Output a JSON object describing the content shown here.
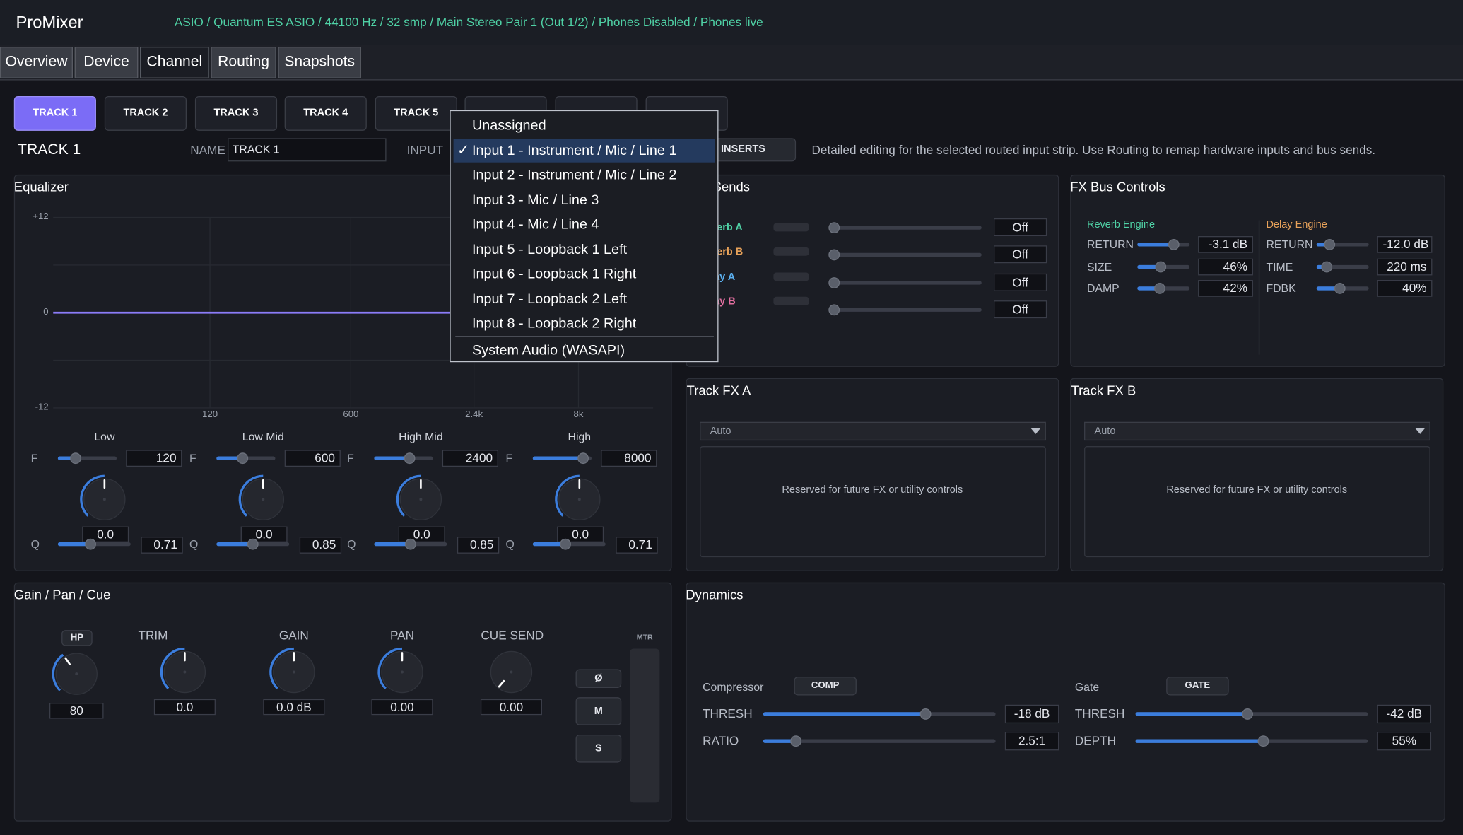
{
  "header": {
    "app_title": "ProMixer",
    "status": "ASIO / Quantum ES ASIO / 44100 Hz / 32 smp / Main Stereo Pair 1 (Out 1/2) / Phones Disabled / Phones live"
  },
  "tabs": [
    "Overview",
    "Device",
    "Channel",
    "Routing",
    "Snapshots"
  ],
  "tracks": [
    "TRACK 1",
    "TRACK 2",
    "TRACK 3",
    "TRACK 4",
    "TRACK 5"
  ],
  "channel": {
    "title": "TRACK 1",
    "name_label": "NAME",
    "name_value": "TRACK 1",
    "input_label": "INPUT",
    "inserts": "INSERTS",
    "description": "Detailed editing for the selected routed input strip. Use Routing to remap hardware inputs and bus sends."
  },
  "input_menu": {
    "check": "✓",
    "options": [
      "Unassigned",
      "Input 1 - Instrument / Mic / Line 1",
      "Input 2 - Instrument / Mic / Line 2",
      "Input 3 - Mic / Line 3",
      "Input 4 - Mic / Line 4",
      "Input 5 - Loopback 1 Left",
      "Input 6 - Loopback 1 Right",
      "Input 7 - Loopback 2 Left",
      "Input 8 - Loopback 2 Right",
      "System Audio (WASAPI)"
    ]
  },
  "equalizer": {
    "title": "Equalizer",
    "yticks": [
      "+12",
      "0",
      "-12"
    ],
    "xticks": [
      "120",
      "600",
      "2.4k",
      "8k"
    ],
    "f_label": "F",
    "q_label": "Q",
    "bands": [
      {
        "name": "Low",
        "freq": 120,
        "gain": "0.0",
        "q": 0.71
      },
      {
        "name": "Low Mid",
        "freq": 600,
        "gain": "0.0",
        "q": 0.85
      },
      {
        "name": "High Mid",
        "freq": 2400,
        "gain": "0.0",
        "q": 0.85
      },
      {
        "name": "High",
        "freq": 8000,
        "gain": "0.0",
        "q": 0.71
      }
    ]
  },
  "sends": {
    "title": "Sends",
    "rows": [
      {
        "name": "Reverb A",
        "state": "Off"
      },
      {
        "name": "Reverb B",
        "state": "Off"
      },
      {
        "name": "Delay A",
        "state": "Off"
      },
      {
        "name": "Delay B",
        "state": "Off"
      }
    ]
  },
  "fx_bus": {
    "title": "FX Bus Controls",
    "reverb": {
      "title": "Reverb Engine",
      "params": [
        {
          "label": "RETURN",
          "value": "-3.1 dB"
        },
        {
          "label": "SIZE",
          "value": "46%"
        },
        {
          "label": "DAMP",
          "value": "42%"
        }
      ]
    },
    "delay": {
      "title": "Delay Engine",
      "params": [
        {
          "label": "RETURN",
          "value": "-12.0 dB"
        },
        {
          "label": "TIME",
          "value": "220 ms"
        },
        {
          "label": "FDBK",
          "value": "40%"
        }
      ]
    }
  },
  "track_fx": [
    {
      "title": "Track FX A",
      "select": "Auto",
      "note": "Reserved for future FX or utility controls"
    },
    {
      "title": "Track FX B",
      "select": "Auto",
      "note": "Reserved for future FX or utility controls"
    }
  ],
  "gain_pan_cue": {
    "title": "Gain / Pan / Cue",
    "hp_button": "HP",
    "hp_value": 80,
    "knobs": [
      {
        "label": "TRIM",
        "value": "0.0"
      },
      {
        "label": "GAIN",
        "value": "0.0 dB"
      },
      {
        "label": "PAN",
        "value": "0.00"
      },
      {
        "label": "CUE SEND",
        "value": "0.00"
      }
    ],
    "buttons": [
      "Ø",
      "M",
      "S"
    ],
    "meter_label": "MTR"
  },
  "dynamics": {
    "title": "Dynamics",
    "compressor": {
      "label": "Compressor",
      "button": "COMP",
      "params": [
        {
          "label": "THRESH",
          "value": "-18 dB"
        },
        {
          "label": "RATIO",
          "value": "2.5:1"
        }
      ]
    },
    "gate": {
      "label": "Gate",
      "button": "GATE",
      "params": [
        {
          "label": "THRESH",
          "value": "-42 dB"
        },
        {
          "label": "DEPTH",
          "value": "55%"
        }
      ]
    }
  }
}
